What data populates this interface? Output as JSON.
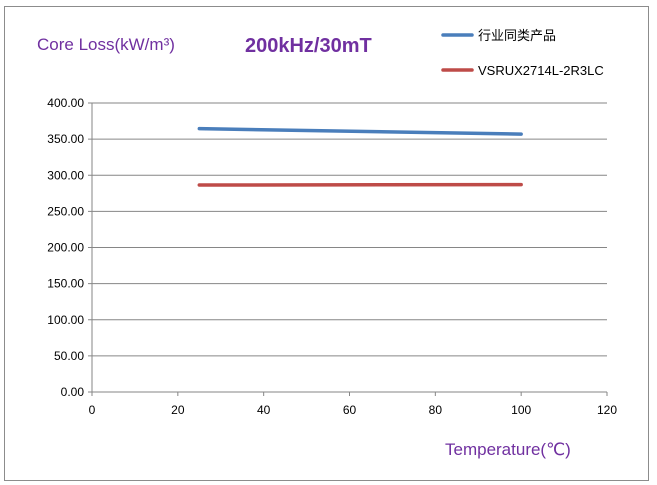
{
  "chart_data": {
    "type": "line",
    "title": "200kHz/30mT",
    "xlabel": "Temperature(℃)",
    "ylabel": "Core Loss(kW/m³)",
    "xlim": [
      0,
      120
    ],
    "ylim": [
      0,
      400
    ],
    "xticks": [
      "0",
      "20",
      "40",
      "60",
      "80",
      "100",
      "120"
    ],
    "yticks": [
      "0.00",
      "50.00",
      "100.00",
      "150.00",
      "200.00",
      "250.00",
      "300.00",
      "350.00",
      "400.00"
    ],
    "grid": true,
    "legend_position": "top-right",
    "series": [
      {
        "name": "行业同类产品",
        "color": "#4a7ebb",
        "x": [
          25,
          100
        ],
        "y": [
          364.5,
          357
        ]
      },
      {
        "name": "VSRUX2714L-2R3LC",
        "color": "#be4b48",
        "x": [
          25,
          100
        ],
        "y": [
          286.5,
          287
        ]
      }
    ]
  }
}
